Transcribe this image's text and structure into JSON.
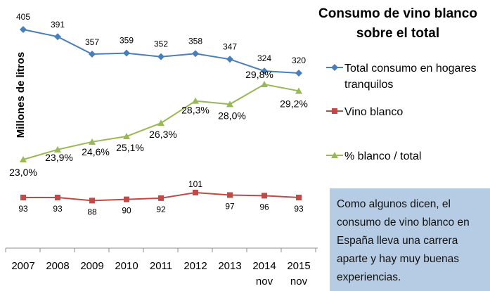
{
  "chart_data": {
    "type": "line",
    "title_lines": [
      "Consumo de vino blanco",
      "sobre el total"
    ],
    "ylabel": "Millones de litros",
    "categories": [
      {
        "year": "2007",
        "sub": ""
      },
      {
        "year": "2008",
        "sub": ""
      },
      {
        "year": "2009",
        "sub": ""
      },
      {
        "year": "2010",
        "sub": ""
      },
      {
        "year": "2011",
        "sub": ""
      },
      {
        "year": "2012",
        "sub": ""
      },
      {
        "year": "2013",
        "sub": ""
      },
      {
        "year": "2014",
        "sub": "nov"
      },
      {
        "year": "2015",
        "sub": "nov"
      }
    ],
    "series": [
      {
        "name": "Total consumo en hogares tranquilos",
        "color": "#4a7ebb",
        "marker": "diamond",
        "values": [
          405,
          391,
          357,
          359,
          352,
          358,
          347,
          324,
          320
        ],
        "labels": [
          "405",
          "391",
          "357",
          "359",
          "352",
          "358",
          "347",
          "324",
          "320"
        ]
      },
      {
        "name": "Vino blanco",
        "color": "#be4b48",
        "marker": "square",
        "values": [
          93,
          93,
          88,
          90,
          92,
          101,
          97,
          96,
          93
        ],
        "labels": [
          "93",
          "93",
          "88",
          "90",
          "92",
          "101",
          "97",
          "96",
          "93"
        ]
      },
      {
        "name": "% blanco / total",
        "color": "#98b954",
        "marker": "triangle",
        "values": [
          23.0,
          23.9,
          24.6,
          25.1,
          26.3,
          28.3,
          28.0,
          29.8,
          29.2
        ],
        "labels": [
          "23,0%",
          "23,9%",
          "24,6%",
          "25,1%",
          "26,3%",
          "28,3%",
          "28,0%",
          "29,8%",
          "29,2%"
        ]
      }
    ]
  },
  "legend": [
    {
      "label_lines": [
        "Total consumo en hogares",
        "tranquilos"
      ]
    },
    {
      "label_lines": [
        "Vino blanco"
      ]
    },
    {
      "label_lines": [
        "% blanco / total"
      ]
    }
  ],
  "note": {
    "text": "Como algunos dicen, el consumo de vino blanco en España lleva una carrera aparte y hay muy buenas experiencias."
  }
}
